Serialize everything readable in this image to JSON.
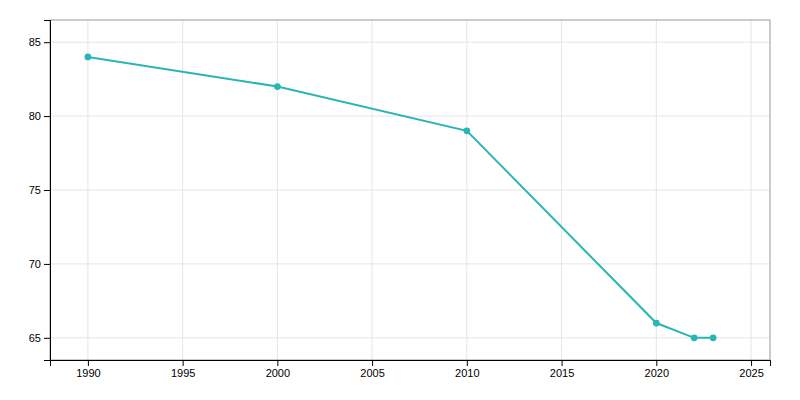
{
  "chart_data": {
    "type": "line",
    "x": [
      1990,
      2000,
      2010,
      2020,
      2022,
      2023
    ],
    "values": [
      84,
      82,
      79,
      66,
      65,
      65
    ],
    "color": "#2ab5b5",
    "marker": "circle",
    "xlim": [
      1988,
      2026
    ],
    "ylim": [
      63.5,
      86.5
    ],
    "xticks": [
      1990,
      1995,
      2000,
      2005,
      2010,
      2015,
      2020,
      2025
    ],
    "yticks": [
      65,
      70,
      75,
      80,
      85
    ],
    "grid": true
  }
}
